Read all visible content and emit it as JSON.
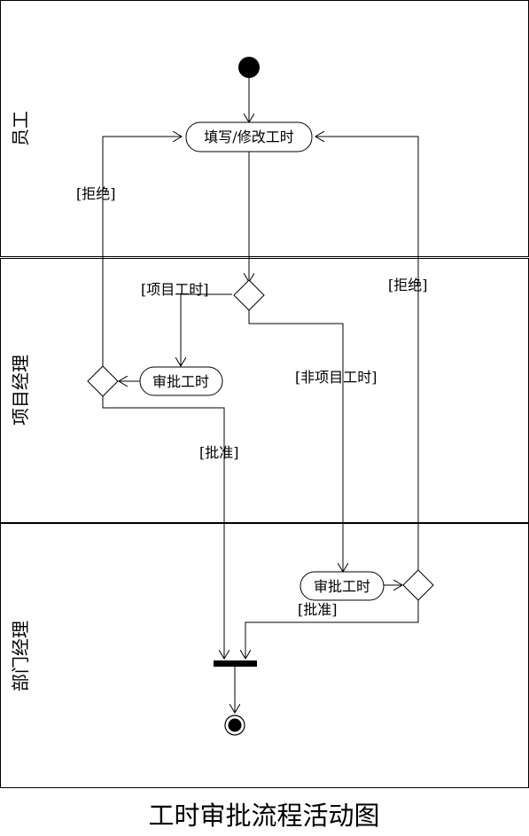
{
  "caption": "工时审批流程活动图",
  "lanes": {
    "employee": "员工",
    "project_manager": "项目经理",
    "department_manager": "部门经理"
  },
  "activities": {
    "fill_modify": "填写/修改工时",
    "pm_approve": "审批工时",
    "dm_approve": "审批工时"
  },
  "guards": {
    "reject_pm": "[拒绝]",
    "reject_dm": "[拒绝]",
    "project_hours": "[项目工时]",
    "non_project_hours": "[非项目工时]",
    "approve_pm": "[批准]",
    "approve_dm": "[批准]"
  }
}
